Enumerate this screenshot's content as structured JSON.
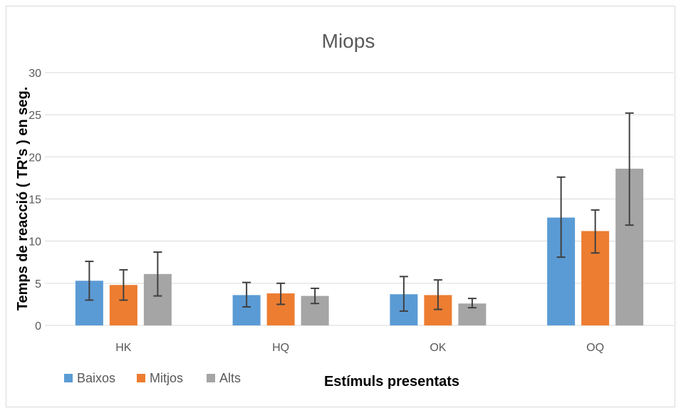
{
  "chart_data": {
    "type": "bar",
    "title": "Miops",
    "xlabel": "Estímuls presentats",
    "ylabel": "Temps de reacció ( TR's ) en seg.",
    "categories": [
      "HK",
      "HQ",
      "OK",
      "OQ"
    ],
    "ylim": [
      0,
      30
    ],
    "yticks": [
      0,
      5,
      10,
      15,
      20,
      25,
      30
    ],
    "ytick_labels": [
      "0",
      "5",
      "10",
      "15",
      "20",
      "25",
      "30"
    ],
    "grid": true,
    "legend_position": "bottom-left",
    "series": [
      {
        "name": "Baixos",
        "color": "#5b9bd5",
        "values": [
          5.3,
          3.6,
          3.7,
          12.8
        ],
        "err_low": [
          3.0,
          2.2,
          1.7,
          8.1
        ],
        "err_high": [
          7.6,
          5.1,
          5.8,
          17.6
        ]
      },
      {
        "name": "Mitjos",
        "color": "#ed7d31",
        "values": [
          4.8,
          3.8,
          3.6,
          11.2
        ],
        "err_low": [
          3.0,
          2.5,
          1.9,
          8.6
        ],
        "err_high": [
          6.6,
          5.0,
          5.4,
          13.7
        ]
      },
      {
        "name": "Alts",
        "color": "#a5a5a5",
        "values": [
          6.1,
          3.5,
          2.6,
          18.6
        ],
        "err_low": [
          3.5,
          2.6,
          2.1,
          11.9
        ],
        "err_high": [
          8.7,
          4.4,
          3.2,
          25.2
        ]
      }
    ]
  }
}
